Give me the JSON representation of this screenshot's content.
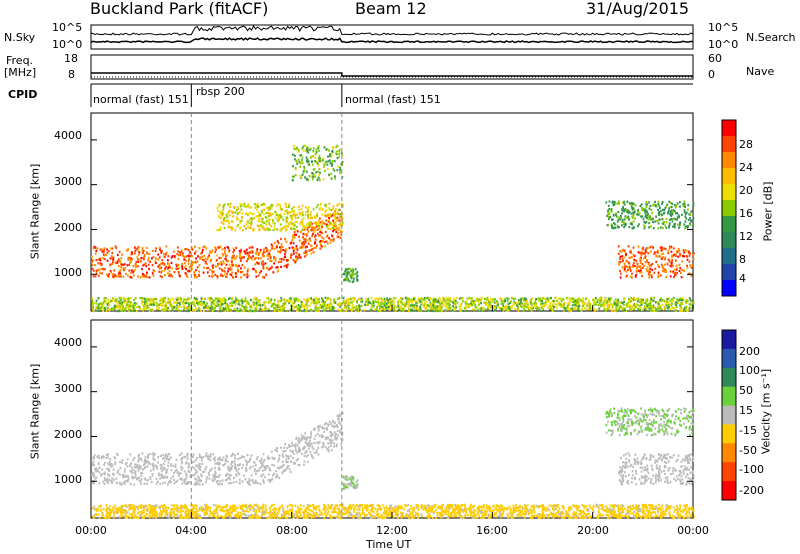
{
  "header": {
    "station": "Buckland Park (fitACF)",
    "beam": "Beam 12",
    "date": "31/Aug/2015"
  },
  "noise_panel": {
    "left_label": "N.Sky",
    "right_label": "N.Search",
    "left_ticks": [
      "10^5",
      "10^0"
    ],
    "right_ticks": [
      "10^5",
      "10^0"
    ]
  },
  "freq_panel": {
    "left_label_1": "Freq.",
    "left_label_2": "[MHz]",
    "right_label": "Nave",
    "left_ticks": [
      "18",
      "8"
    ],
    "right_ticks": [
      "60",
      "0"
    ]
  },
  "cpid_panel": {
    "label": "CPID",
    "segments": [
      {
        "name": "normal (fast) 151",
        "start_hour": 0,
        "end_hour": 4.0
      },
      {
        "name": "rbsp 200",
        "start_hour": 4.0,
        "end_hour": 10.0
      },
      {
        "name": "normal (fast) 151",
        "start_hour": 10.0,
        "end_hour": 24.0
      }
    ]
  },
  "power_panel": {
    "ylabel": "Slant Range [km]",
    "yticks": [
      "4000",
      "3000",
      "2000",
      "1000"
    ],
    "colorbar_label": "Power [dB]",
    "colorbar_ticks": [
      "28",
      "24",
      "20",
      "16",
      "12",
      "8",
      "4"
    ],
    "colorbar_colors": [
      "#ff0000",
      "#ff4400",
      "#ff8800",
      "#ffbb00",
      "#eedd00",
      "#88cc00",
      "#339944",
      "#2e8b57",
      "#1f6e8c",
      "#2244aa",
      "#0000ff"
    ]
  },
  "velocity_panel": {
    "ylabel": "Slant Range [km]",
    "yticks": [
      "4000",
      "3000",
      "2000",
      "1000"
    ],
    "colorbar_label": "Velocity [m s⁻¹]",
    "colorbar_ticks": [
      "200",
      "100",
      "50",
      "15",
      "-15",
      "-50",
      "-100",
      "-200"
    ],
    "colorbar_colors": [
      "#1a1aa0",
      "#2a5ab0",
      "#2e8b57",
      "#6ad13a",
      "#bbbbbb",
      "#ffcc00",
      "#ff8800",
      "#ff4400",
      "#ff0000"
    ]
  },
  "x_axis": {
    "label": "Time UT",
    "ticks": [
      "00:00",
      "04:00",
      "08:00",
      "12:00",
      "16:00",
      "20:00",
      "00:00"
    ]
  },
  "chart_data": {
    "type": "heatmap",
    "title": "Buckland Park (fitACF)",
    "x_range_hours": [
      0,
      24
    ],
    "y_range_km": [
      180,
      4600
    ],
    "power_ylim_db": [
      0,
      30
    ],
    "velocity_ylim": [
      -200,
      200
    ],
    "xlabel": "Time UT",
    "ylabel": "Slant Range [km]",
    "features": [
      {
        "panel": "power",
        "t0": 0,
        "t1": 10,
        "r_center": 1300,
        "r_width": 350,
        "level_db": 26
      },
      {
        "panel": "power",
        "t0": 5,
        "t1": 10,
        "r_center": 2300,
        "r_width": 300,
        "level_db": 18
      },
      {
        "panel": "power",
        "t0": 8,
        "t1": 10,
        "r_center": 3500,
        "r_width": 400,
        "level_db": 14
      },
      {
        "panel": "power",
        "t0": 10,
        "t1": 10.6,
        "r_center": 1000,
        "r_width": 150,
        "level_db": 12
      },
      {
        "panel": "power",
        "t0": 21,
        "t1": 24,
        "r_center": 1300,
        "r_width": 350,
        "level_db": 26
      },
      {
        "panel": "power",
        "t0": 20.5,
        "t1": 24,
        "r_center": 2350,
        "r_width": 300,
        "level_db": 12
      },
      {
        "panel": "power",
        "t0": 0,
        "t1": 24,
        "r_center": 350,
        "r_width": 150,
        "level_db": 16
      },
      {
        "panel": "velocity",
        "t0": 0,
        "t1": 10,
        "r_center": 1300,
        "r_width": 350,
        "level_ms": 0
      },
      {
        "panel": "velocity",
        "t0": 10,
        "t1": 10.6,
        "r_center": 1000,
        "r_width": 150,
        "level_ms": 30
      },
      {
        "panel": "velocity",
        "t0": 20.5,
        "t1": 24,
        "r_center": 2350,
        "r_width": 300,
        "level_ms": 30
      },
      {
        "panel": "velocity",
        "t0": 21,
        "t1": 24,
        "r_center": 1300,
        "r_width": 350,
        "level_ms": 0
      },
      {
        "panel": "velocity",
        "t0": 0,
        "t1": 24,
        "r_center": 350,
        "r_width": 150,
        "level_ms": -40
      }
    ]
  }
}
